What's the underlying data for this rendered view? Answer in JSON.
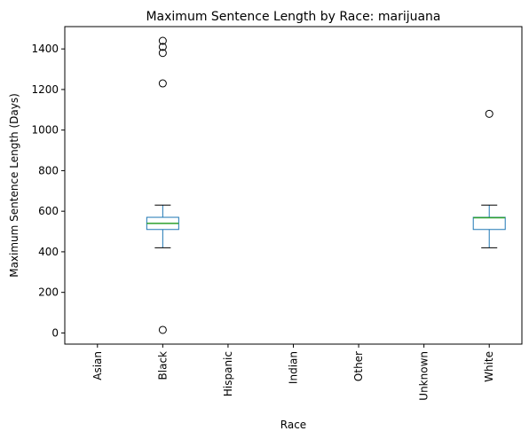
{
  "chart_data": {
    "type": "boxplot",
    "title": "Maximum Sentence Length by Race: marijuana",
    "xlabel": "Race",
    "ylabel": "Maximum Sentence Length (Days)",
    "categories": [
      "Asian",
      "Black",
      "Hispanic",
      "Indian",
      "Other",
      "Unknown",
      "White"
    ],
    "ylim": [
      -55,
      1510
    ],
    "yticks": [
      0,
      200,
      400,
      600,
      800,
      1000,
      1200,
      1400
    ],
    "grid": false,
    "boxes": [
      null,
      {
        "whisker_low": 420,
        "q1": 510,
        "median": 540,
        "q3": 570,
        "whisker_high": 630,
        "fliers": [
          15,
          1230,
          1380,
          1410,
          1440
        ]
      },
      null,
      null,
      null,
      null,
      {
        "whisker_low": 420,
        "q1": 510,
        "median": 568,
        "q3": 570,
        "whisker_high": 630,
        "fliers": [
          1080
        ]
      }
    ],
    "colors": {
      "box": "#1f77b4",
      "median": "#2ca02c",
      "flier": "#000000"
    }
  }
}
